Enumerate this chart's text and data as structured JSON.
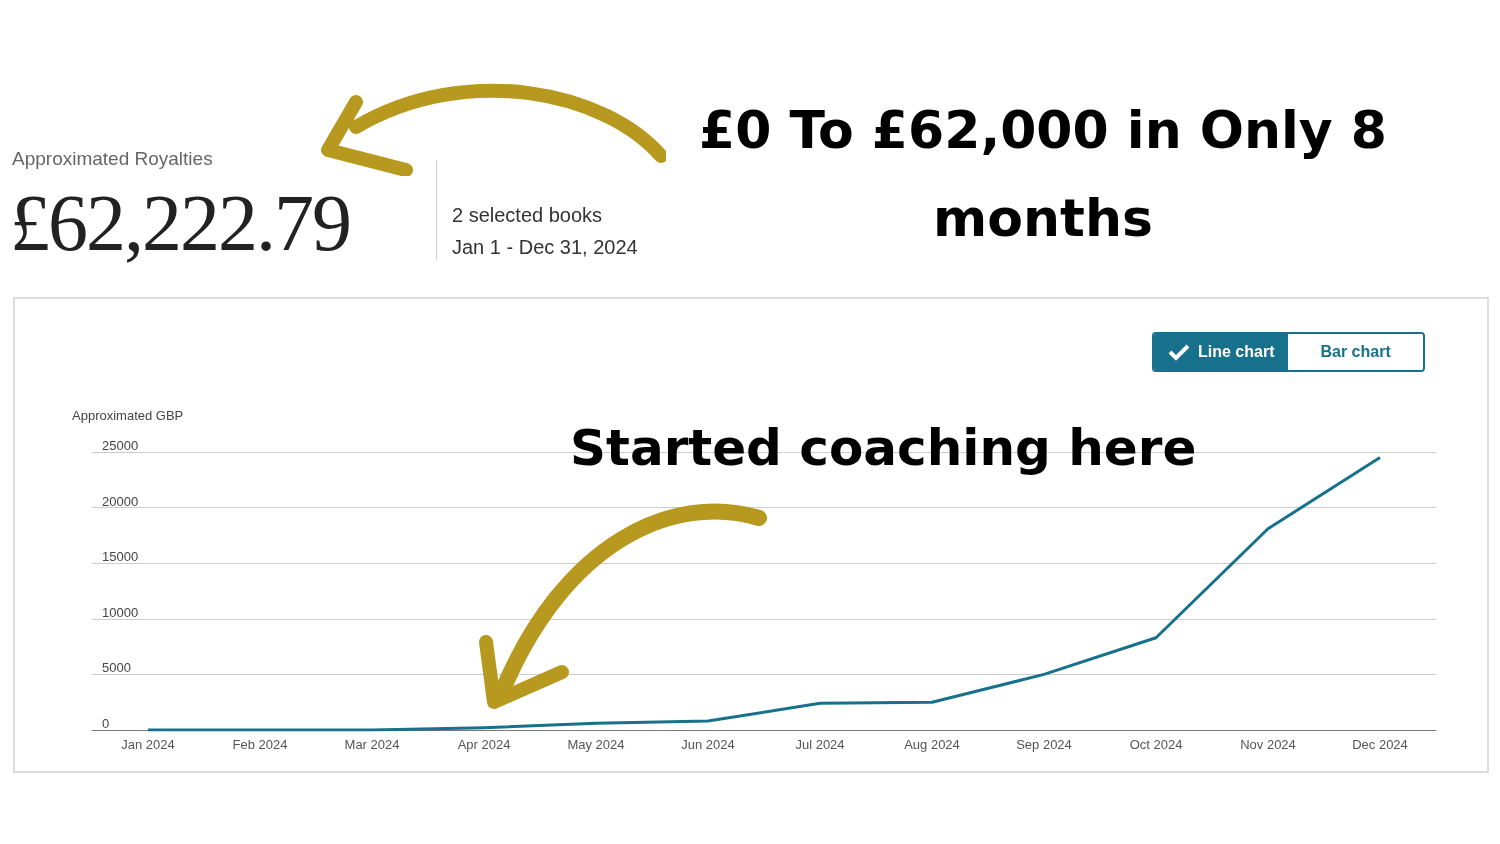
{
  "chart_data": {
    "type": "line",
    "title": "£0 To £62,000 in Only 8 months",
    "ylabel": "Approximated GBP",
    "annotations": [
      "Approximated Royalties",
      "£62,222.79",
      "2 selected books",
      "Jan 1 - Dec 31, 2024",
      "Line chart",
      "Bar chart",
      "Started coaching here"
    ],
    "categories": [
      "Jan 2024",
      "Feb 2024",
      "Mar 2024",
      "Apr 2024",
      "May 2024",
      "Jun 2024",
      "Jul 2024",
      "Aug 2024",
      "Sep 2024",
      "Oct 2024",
      "Nov 2024",
      "Dec 2024"
    ],
    "series": [
      {
        "color": "#17708c",
        "values": [
          0,
          0,
          0,
          200,
          600,
          800,
          2400,
          2500,
          5000,
          8300,
          18100,
          24500
        ]
      }
    ],
    "ylim": [
      0,
      25000
    ],
    "yticks": [
      0,
      5000,
      10000,
      15000,
      20000,
      25000
    ],
    "grid": "y",
    "marker": "none",
    "line_style": "solid"
  }
}
